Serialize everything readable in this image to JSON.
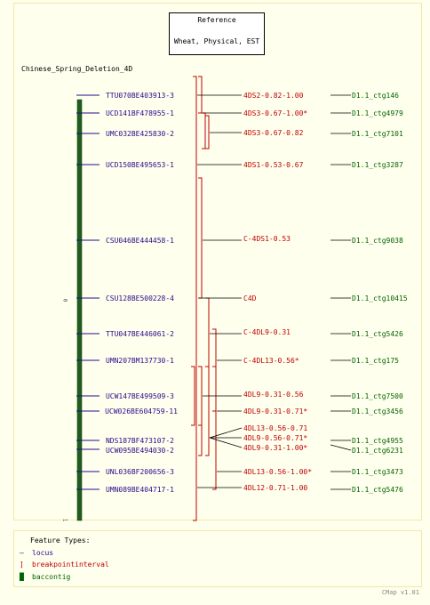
{
  "reference": {
    "title": "Reference",
    "subtitle": "Wheat, Physical, EST"
  },
  "map_title": "Chinese_Spring_Deletion_4D",
  "axis": {
    "start": "0",
    "end": "1"
  },
  "loci": [
    "TTU070BE403913-3",
    "UCD141BF478955-1",
    "UMC032BE425830-2",
    "UCD150BE495653-1",
    "CSU046BE444458-1",
    "CSU128BE500228-4",
    "TTU047BE446061-2",
    "UMN207BM137730-1",
    "UCW147BE499509-3",
    "UCW026BE604759-11",
    "NDS187BF473107-2",
    "UCW095BE494030-2",
    "UNL036BF200656-3",
    "UMN089BE404717-1"
  ],
  "breakpoints": [
    "4DS2-0.82-1.00",
    "4DS3-0.67-1.00*",
    "4DS3-0.67-0.82",
    "4DS1-0.53-0.67",
    "C-4DS1-0.53",
    "C4D",
    "C-4DL9-0.31",
    "C-4DL13-0.56*",
    "4DL9-0.31-0.56",
    "4DL9-0.31-0.71*",
    "4DL13-0.56-0.71",
    "4DL9-0.56-0.71*",
    "4DL9-0.31-1.00*",
    "4DL13-0.56-1.00*",
    "4DL12-0.71-1.00"
  ],
  "contigs": [
    "D1.1_ctg146",
    "D1.1_ctg4979",
    "D1.1_ctg7101",
    "D1.1_ctg3287",
    "D1.1_ctg9038",
    "D1.1_ctg10415",
    "D1.1_ctg5426",
    "D1.1_ctg175",
    "D1.1_ctg7500",
    "D1.1_ctg3456",
    "D1.1_ctg4955",
    "D1.1_ctg6231",
    "D1.1_ctg3473",
    "D1.1_ctg5476"
  ],
  "legend": {
    "title": "Feature Types:",
    "locus": "locus",
    "breakpoint": "breakpointinterval",
    "contig": "baccontig"
  },
  "footer": "CMap v1.01",
  "colors": {
    "locus": "#2a0a8a",
    "breakpoint": "#c00000",
    "contig": "#006400",
    "background": "#ffffee"
  }
}
